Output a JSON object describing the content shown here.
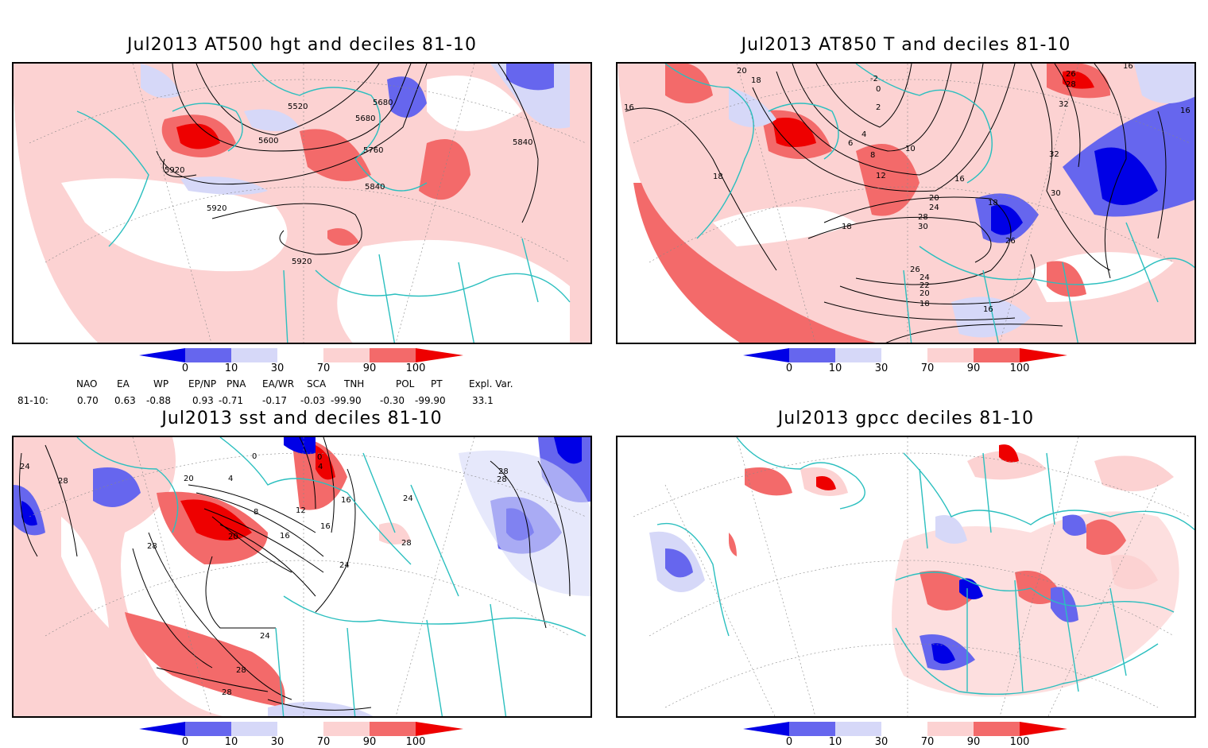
{
  "panels": [
    {
      "title": "Jul2013 AT500 hgt and deciles 81-10",
      "contour_labels": [
        "5520",
        "5680",
        "5680",
        "5600",
        "5760",
        "5840",
        "5840",
        "5920",
        "5920",
        "5920"
      ]
    },
    {
      "title": "Jul2013 AT850 T and deciles 81-10",
      "contour_labels": [
        "20",
        "18",
        "-2",
        "0",
        "2",
        "4",
        "6",
        "8",
        "10",
        "12",
        "16",
        "16",
        "16",
        "18",
        "18",
        "18",
        "20",
        "24",
        "28",
        "30",
        "26",
        "24",
        "22",
        "20",
        "18",
        "16",
        "26",
        "26",
        "28",
        "30",
        "32",
        "32",
        "16"
      ]
    },
    {
      "title": "Jul2013 sst and deciles 81-10",
      "contour_labels": [
        "24",
        "28",
        "20",
        "0",
        "4",
        "8",
        "12",
        "16",
        "20",
        "28",
        "24",
        "28",
        "28",
        "28",
        "24",
        "28",
        "28",
        "24",
        "16",
        "16",
        "0",
        "4"
      ]
    },
    {
      "title": "Jul2013 gpcc deciles 81-10",
      "contour_labels": []
    }
  ],
  "colorbar": {
    "ticks": [
      "0",
      "10",
      "30",
      "70",
      "90",
      "100"
    ],
    "colors": [
      "#0000e6",
      "#6666ee",
      "#d6d8f8",
      "#ffffff",
      "#fcd2d2",
      "#f36a6a",
      "#ee0000"
    ]
  },
  "indices": {
    "headers": [
      "NAO",
      "EA",
      "WP",
      "EP/NP",
      "PNA",
      "EA/WR",
      "SCA",
      "TNH",
      "POL",
      "PT",
      "Expl. Var."
    ],
    "row_label": "81-10:",
    "values": [
      "0.70",
      "0.63",
      "-0.88",
      "0.93",
      "-0.71",
      "-0.17",
      "-0.03",
      "-99.90",
      "-0.30",
      "-99.90",
      "33.1"
    ]
  }
}
